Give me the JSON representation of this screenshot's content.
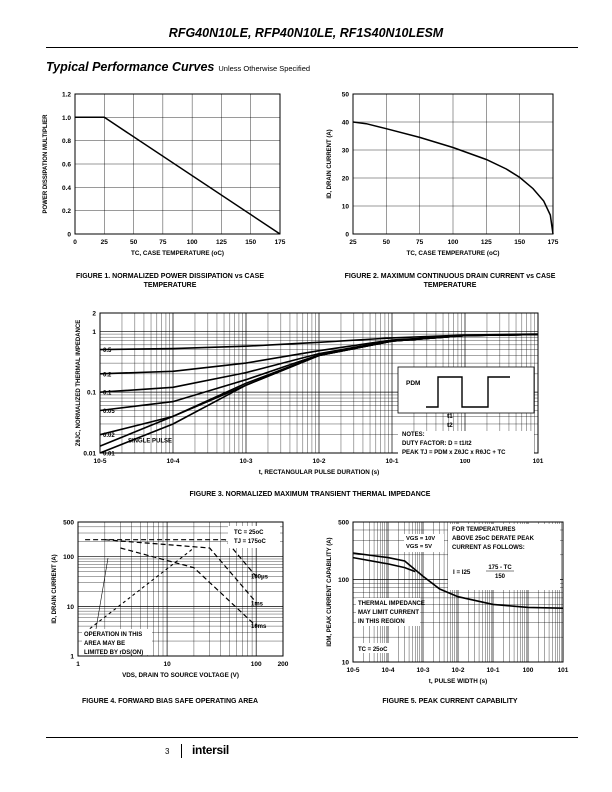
{
  "header": {
    "title": "RFG40N10LE, RFP40N10LE, RF1S40N10LESM"
  },
  "section": {
    "title": "Typical Performance Curves",
    "subtitle": "Unless Otherwise Specified"
  },
  "footer": {
    "page_number": "3",
    "logo": "intersil"
  },
  "charts": [
    {
      "id": "fig1",
      "chart_data": {
        "type": "line",
        "title": "FIGURE 1. NORMALIZED POWER DISSIPATION vs CASE TEMPERATURE",
        "xlabel": "TC, CASE TEMPERATURE (oC)",
        "ylabel": "POWER DISSIPATION MULTIPLIER",
        "xlim": [
          0,
          175
        ],
        "ylim": [
          0,
          1.2
        ],
        "xticks": [
          0,
          25,
          50,
          75,
          100,
          125,
          150,
          175
        ],
        "xticklabels": [
          "0",
          "25",
          "50",
          "75",
          "100",
          "125",
          "150",
          "175"
        ],
        "yticks": [
          0,
          0.2,
          0.4,
          0.6,
          0.8,
          1.0,
          1.2
        ],
        "yticklabels": [
          "0",
          "0.2",
          "0.4",
          "0.6",
          "0.8",
          "1.0",
          "1.2"
        ],
        "series": [
          {
            "name": "multiplier",
            "x": [
              0,
              25,
              175
            ],
            "y": [
              1.0,
              1.0,
              0
            ]
          }
        ]
      }
    },
    {
      "id": "fig2",
      "chart_data": {
        "type": "line",
        "title": "FIGURE 2. MAXIMUM CONTINUOUS DRAIN CURRENT vs CASE TEMPERATURE",
        "xlabel": "TC, CASE TEMPERATURE (oC)",
        "ylabel": "ID, DRAIN CURRENT (A)",
        "xlim": [
          25,
          175
        ],
        "ylim": [
          0,
          50
        ],
        "xticks": [
          25,
          50,
          75,
          100,
          125,
          150,
          175
        ],
        "xticklabels": [
          "25",
          "50",
          "75",
          "100",
          "125",
          "150",
          "175"
        ],
        "yticks": [
          0,
          10,
          20,
          30,
          40,
          50
        ],
        "yticklabels": [
          "0",
          "10",
          "20",
          "30",
          "40",
          "50"
        ],
        "series": [
          {
            "name": "ID",
            "x": [
              25,
              35,
              50,
              75,
              100,
              125,
              140,
              150,
              160,
              168,
              173,
              175
            ],
            "y": [
              40,
              39.4,
              37.6,
              34.5,
              30.9,
              26.6,
              23.2,
              20.2,
              16.2,
              11.8,
              6.8,
              0
            ]
          }
        ]
      }
    },
    {
      "id": "fig3",
      "chart_data": {
        "type": "line",
        "title": "FIGURE 3. NORMALIZED MAXIMUM TRANSIENT THERMAL IMPEDANCE",
        "xlabel": "t, RECTANGULAR PULSE DURATION (s)",
        "ylabel": "ZθJC, NORMALIZED THERMAL IMPEDANCE",
        "xscale": "log",
        "yscale": "log",
        "xlim": [
          1e-05,
          10
        ],
        "ylim": [
          0.01,
          2
        ],
        "xticks": [
          1e-05,
          0.0001,
          0.001,
          0.01,
          0.1,
          1,
          10
        ],
        "xticklabels": [
          "10-5",
          "10-4",
          "10-3",
          "10-2",
          "10-1",
          "100",
          "101"
        ],
        "yticks": [
          0.01,
          0.1,
          1,
          2
        ],
        "yticklabels": [
          "0.01",
          "0.1",
          "1",
          "2"
        ],
        "x": [
          1e-05,
          0.0001,
          0.001,
          0.01,
          0.1,
          1,
          10
        ],
        "series": [
          {
            "name": "0.5",
            "values": [
              0.5,
              0.52,
              0.57,
              0.66,
              0.78,
              0.87,
              0.9
            ]
          },
          {
            "name": "0.2",
            "values": [
              0.2,
              0.22,
              0.3,
              0.48,
              0.72,
              0.85,
              0.89
            ]
          },
          {
            "name": "0.1",
            "values": [
              0.1,
              0.12,
              0.21,
              0.43,
              0.7,
              0.85,
              0.89
            ]
          },
          {
            "name": "0.05",
            "values": [
              0.05,
              0.07,
              0.16,
              0.41,
              0.69,
              0.85,
              0.89
            ]
          },
          {
            "name": "0.02",
            "values": [
              0.02,
              0.04,
              0.14,
              0.4,
              0.69,
              0.85,
              0.89
            ]
          },
          {
            "name": "0.01",
            "values": [
              0.01,
              0.03,
              0.13,
              0.4,
              0.69,
              0.85,
              0.89
            ]
          },
          {
            "name": "SINGLE PULSE",
            "values": [
              0.013,
              0.04,
              0.13,
              0.4,
              0.69,
              0.85,
              0.89
            ]
          }
        ],
        "curve_labels": [
          "0.5",
          "0.2",
          "0.1",
          "0.05",
          "0.02",
          "0.01",
          "SINGLE PULSE"
        ],
        "inset": {
          "pdm": "PDM",
          "t1": "t1",
          "t2": "t2"
        },
        "notes": [
          "NOTES:",
          "DUTY FACTOR: D = t1/t2",
          "PEAK TJ = PDM x ZθJC x RθJC + TC"
        ]
      }
    },
    {
      "id": "fig4",
      "chart_data": {
        "type": "line",
        "title": "FIGURE 4. FORWARD BIAS SAFE OPERATING AREA",
        "xlabel": "VDS, DRAIN TO SOURCE VOLTAGE (V)",
        "ylabel": "ID, DRAIN CURRENT (A)",
        "xscale": "log",
        "yscale": "log",
        "xlim": [
          1,
          200
        ],
        "ylim": [
          1,
          500
        ],
        "xticks": [
          1,
          10,
          100,
          200
        ],
        "xticklabels": [
          "1",
          "10",
          "100",
          "200"
        ],
        "yticks": [
          1,
          10,
          100,
          500
        ],
        "yticklabels": [
          "1",
          "10",
          "100",
          "500"
        ],
        "conditions": [
          "TC = 25oC",
          "TJ = 175oC"
        ],
        "series": [
          {
            "name": "RDS(ON) limit",
            "x": [
              1.2,
              20
            ],
            "y": [
              3,
              150
            ]
          },
          {
            "name": "100μs",
            "x": [
              1.2,
              45,
              100
            ],
            "y": [
              220,
              220,
              40
            ]
          },
          {
            "name": "1ms",
            "x": [
              2,
              30,
              100
            ],
            "y": [
              220,
              150,
              12
            ]
          },
          {
            "name": "10ms",
            "x": [
              3,
              20,
              100
            ],
            "y": [
              150,
              60,
              4
            ]
          }
        ],
        "curve_labels": [
          "100μs",
          "1ms",
          "10ms"
        ],
        "annotation": [
          "OPERATION IN THIS",
          "AREA MAY BE",
          "LIMITED BY rDS(ON)"
        ]
      }
    },
    {
      "id": "fig5",
      "chart_data": {
        "type": "line",
        "title": "FIGURE 5. PEAK CURRENT CAPABILITY",
        "xlabel": "t, PULSE WIDTH (s)",
        "ylabel": "IDM, PEAK CURRENT CAPABILITY (A)",
        "xscale": "log",
        "yscale": "log",
        "xlim": [
          1e-05,
          10
        ],
        "ylim": [
          10,
          500
        ],
        "xticks": [
          1e-05,
          0.0001,
          0.001,
          0.01,
          0.1,
          1,
          10
        ],
        "xticklabels": [
          "10-5",
          "10-4",
          "10-3",
          "10-2",
          "10-1",
          "100",
          "101"
        ],
        "yticks": [
          10,
          100,
          500
        ],
        "yticklabels": [
          "10",
          "100",
          "500"
        ],
        "series": [
          {
            "name": "VGS = 10V",
            "x": [
              1e-05,
              0.0001,
              0.0003,
              0.001,
              0.003,
              0.01,
              0.1,
              1,
              10
            ],
            "y": [
              210,
              185,
              168,
              110,
              77,
              62,
              50,
              46,
              45
            ]
          },
          {
            "name": "VGS = 5V",
            "x": [
              1e-05,
              0.0001,
              0.0003,
              0.0006
            ],
            "y": [
              185,
              155,
              140,
              125
            ]
          }
        ],
        "legend": [
          "VGS = 10V",
          "VGS = 5V"
        ],
        "note": [
          "FOR TEMPERATURES",
          "ABOVE 25oC DERATE PEAK",
          "CURRENT AS FOLLOWS:"
        ],
        "formula": {
          "lhs": "I = I25",
          "num": "175 - TC",
          "den": "150"
        },
        "annotation": [
          "THERMAL IMPEDANCE",
          "MAY LIMIT CURRENT",
          "IN THIS REGION"
        ],
        "condition": "TC = 25oC"
      }
    }
  ]
}
